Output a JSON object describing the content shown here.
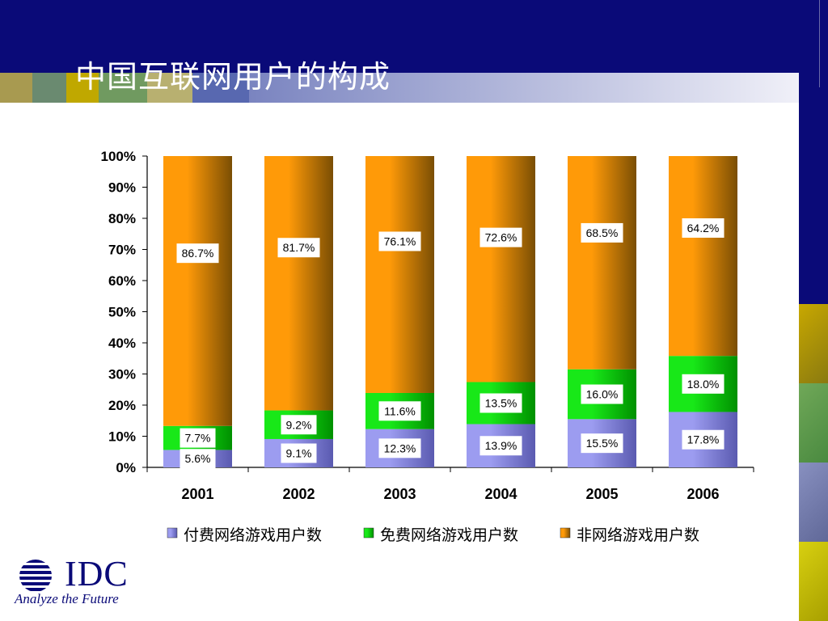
{
  "slide": {
    "title": "中国互联网用户的构成",
    "colors": {
      "header": "#0a0a78",
      "title_text": "#ffffff"
    }
  },
  "logo": {
    "brand": "IDC",
    "tagline": "Analyze the Future",
    "color": "#0a0a78"
  },
  "chart_data": {
    "type": "bar",
    "stacked": true,
    "percent_stacked": true,
    "categories": [
      "2001",
      "2002",
      "2003",
      "2004",
      "2005",
      "2006"
    ],
    "series": [
      {
        "name": "付费网络游戏用户数",
        "values": [
          5.6,
          9.1,
          12.3,
          13.9,
          15.5,
          17.8
        ],
        "labels": [
          "5.6%",
          "9.1%",
          "12.3%",
          "13.9%",
          "15.5%",
          "17.8%"
        ],
        "color": "#8080e0"
      },
      {
        "name": "免费网络游戏用户数",
        "values": [
          7.7,
          9.2,
          11.6,
          13.5,
          16.0,
          18.0
        ],
        "labels": [
          "7.7%",
          "9.2%",
          "11.6%",
          "13.5%",
          "16.0%",
          "18.0%"
        ],
        "color": "#00cc00"
      },
      {
        "name": "非网络游戏用户数",
        "values": [
          86.7,
          81.7,
          76.1,
          72.6,
          68.5,
          64.2
        ],
        "labels": [
          "86.7%",
          "81.7%",
          "76.1%",
          "72.6%",
          "68.5%",
          "64.2%"
        ],
        "color": "#f0900a"
      }
    ],
    "ylim": [
      0,
      100
    ],
    "yticks": [
      "0%",
      "10%",
      "20%",
      "30%",
      "40%",
      "50%",
      "60%",
      "70%",
      "80%",
      "90%",
      "100%"
    ],
    "legend": "bottom",
    "grid": false
  }
}
